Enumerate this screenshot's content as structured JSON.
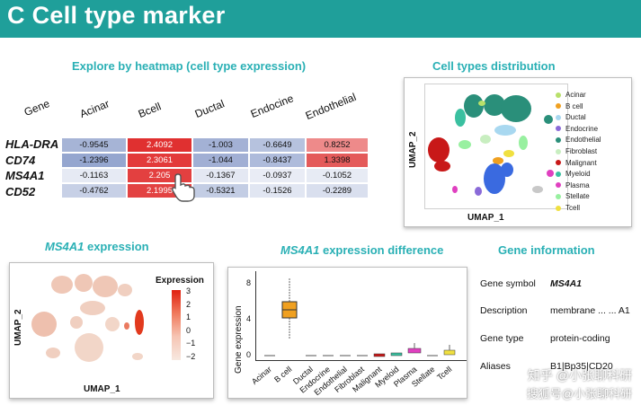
{
  "header": {
    "title": "C  Cell type marker"
  },
  "heatmap": {
    "title": "Explore by heatmap (cell type expression)",
    "gene_header": "Gene",
    "columns": [
      "Acinar",
      "Bcell",
      "Ductal",
      "Endocine",
      "Endothelial"
    ],
    "rows": [
      {
        "gene": "HLA-DRA",
        "values": [
          "-0.9545",
          "2.4092",
          "-1.003",
          "-0.6649",
          "0.8252"
        ]
      },
      {
        "gene": "CD74",
        "values": [
          "-1.2396",
          "2.3061",
          "-1.044",
          "-0.8437",
          "1.3398"
        ]
      },
      {
        "gene": "MS4A1",
        "values": [
          "-0.1163",
          "2.205",
          "-0.1367",
          "-0.0937",
          "-0.1052"
        ]
      },
      {
        "gene": "CD52",
        "values": [
          "-0.4762",
          "2.1995",
          "-0.5321",
          "-0.1526",
          "-0.2289"
        ]
      }
    ],
    "cell_colors": [
      [
        "#a6b4d6",
        "#e03030",
        "#a3b1d5",
        "#b6c2de",
        "#ee8a8a"
      ],
      [
        "#95a6cf",
        "#e33a3a",
        "#a1afd4",
        "#aebbdb",
        "#e45a5a"
      ],
      [
        "#e6eaf4",
        "#e34040",
        "#e4e8f3",
        "#e9ecf5",
        "#e7ebf4"
      ],
      [
        "#c7d0e6",
        "#e34242",
        "#c3cde4",
        "#e1e6f2",
        "#d9dfee"
      ]
    ]
  },
  "cell_types": {
    "title": "Cell types distribution",
    "xlabel": "UMAP_1",
    "ylabel": "UMAP_2",
    "legend": [
      {
        "label": "Acinar",
        "color": "#b8e06a"
      },
      {
        "label": "B cell",
        "color": "#f0a020"
      },
      {
        "label": "Ductal",
        "color": "#a8d8f0"
      },
      {
        "label": "Endocrine",
        "color": "#8a6ad8"
      },
      {
        "label": "Endothelial",
        "color": "#2a8f7a"
      },
      {
        "label": "Fibroblast",
        "color": "#c8eec0"
      },
      {
        "label": "Malignant",
        "color": "#c81818"
      },
      {
        "label": "Myeloid",
        "color": "#3ac0a0"
      },
      {
        "label": "Plasma",
        "color": "#e040c0"
      },
      {
        "label": "Stellate",
        "color": "#98f0a0"
      },
      {
        "label": "Tcell",
        "color": "#f0e040"
      }
    ]
  },
  "expression": {
    "title_gene": "MS4A1",
    "title_rest": " expression",
    "xlabel": "UMAP_1",
    "ylabel": "UMAP_2",
    "colorbar_title": "Expression",
    "colorbar_ticks": [
      "3",
      "2",
      "1",
      "0",
      "−1",
      "−2"
    ]
  },
  "difference": {
    "title_gene": "MS4A1",
    "title_rest": " expression difference",
    "ylabel": "Gene expression",
    "yticks": [
      "8",
      "4",
      "0"
    ],
    "categories": [
      "Acinar",
      "B cell",
      "Ductal",
      "Endocrine",
      "Endothelial",
      "Fibroblast",
      "Malignant",
      "Myeloid",
      "Plasma",
      "Stellate",
      "Tcell"
    ]
  },
  "gene_info": {
    "title": "Gene information",
    "rows": [
      {
        "label": "Gene symbol",
        "value": "MS4A1"
      },
      {
        "label": "Description",
        "value": "membrane ... ... A1"
      },
      {
        "label": "Gene type",
        "value": "protein-coding"
      },
      {
        "label": "Aliases",
        "value": "B1|Bp35|CD20"
      }
    ]
  },
  "watermark": {
    "line1": "知乎 @小张聊科研",
    "line2": "搜狐号@小张聊科研"
  }
}
